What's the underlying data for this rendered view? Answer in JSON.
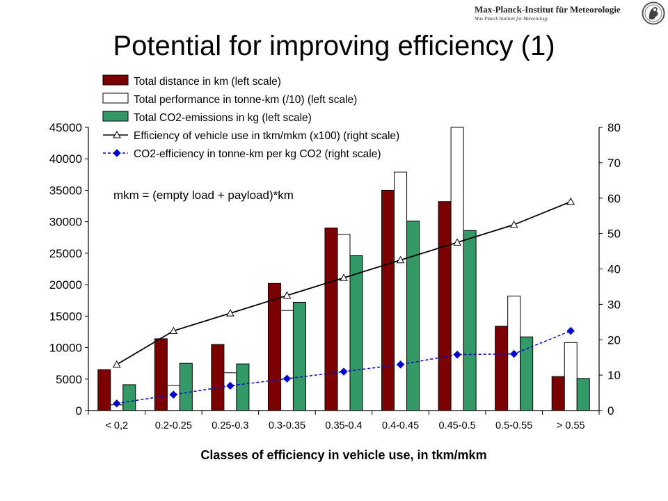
{
  "header": {
    "title": "Potential for improving efficiency (1)",
    "brand_name": "Max-Planck-Institut für Meteorologie",
    "brand_sub": "Max Planck Institute for Meteorology",
    "logo_icon": "mpg-minerva-logo-icon"
  },
  "colors": {
    "distance": "#7b0000",
    "performance": "#ffffff",
    "co2": "#339966",
    "efficiency_line": "#000000",
    "co2_efficiency_line": "#0000cc"
  },
  "chart_data": {
    "type": "bar",
    "xlabel": "Classes of efficiency in vehicle use, in tkm/mkm",
    "ylabel": "",
    "ylabel_right": "",
    "annotation": "mkm = (empty load + payload)*km",
    "categories": [
      "< 0,2",
      "0.2-0.25",
      "0.25-0.3",
      "0.3-0.35",
      "0.35-0.4",
      "0.4-0.45",
      "0.45-0.5",
      "0.5-0.55",
      "> 0.55"
    ],
    "ylim": [
      0,
      45000
    ],
    "yticks": [
      "0",
      "5000",
      "10000",
      "15000",
      "20000",
      "25000",
      "30000",
      "35000",
      "40000",
      "45000"
    ],
    "ylim_right": [
      0,
      80
    ],
    "yticks_right": [
      "0",
      "10",
      "20",
      "30",
      "40",
      "50",
      "60",
      "70",
      "80"
    ],
    "grid": false,
    "legend_position": "top-left",
    "series": [
      {
        "name": "Total distance in km (left scale)",
        "kind": "bar",
        "axis": "left",
        "color": "#7b0000",
        "values": [
          6500,
          11400,
          10500,
          20200,
          29000,
          35000,
          33200,
          13400,
          5400
        ]
      },
      {
        "name": "Total performance in tonne-km (/10) (left scale)",
        "kind": "bar",
        "axis": "left",
        "color": "#ffffff",
        "values": [
          900,
          4000,
          6000,
          15900,
          28000,
          37900,
          45000,
          18200,
          10800
        ]
      },
      {
        "name": "Total CO2-emissions in kg (left scale)",
        "kind": "bar",
        "axis": "left",
        "color": "#339966",
        "values": [
          4100,
          7500,
          7400,
          17200,
          24600,
          30100,
          28600,
          11700,
          5100
        ]
      },
      {
        "name": "Efficiency of vehicle use in tkm/mkm (x100) (right scale)",
        "kind": "line",
        "axis": "right",
        "color": "#000000",
        "marker": "triangle",
        "values": [
          13,
          22.5,
          27.5,
          32.5,
          37.5,
          42.5,
          47.5,
          52.5,
          59
        ]
      },
      {
        "name": "CO2-efficiency in tonne-km per kg CO2 (right scale)",
        "kind": "line",
        "axis": "right",
        "color": "#0000cc",
        "marker": "diamond",
        "dashed": true,
        "values": [
          2,
          4.5,
          7,
          9,
          11,
          13,
          15.8,
          16,
          22.5
        ]
      }
    ]
  }
}
